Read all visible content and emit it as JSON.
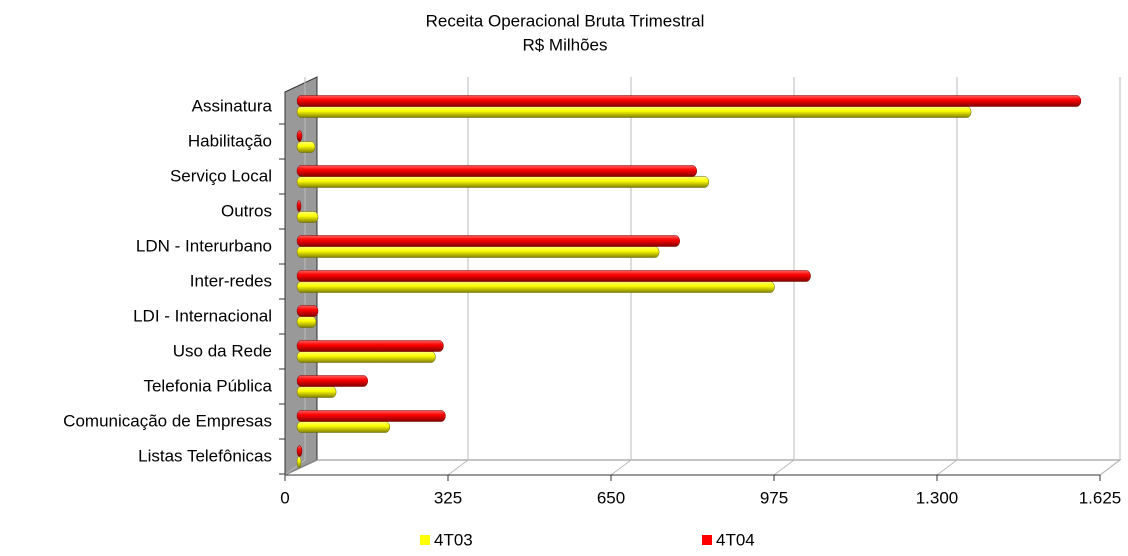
{
  "chart_data": {
    "type": "bar",
    "orientation": "horizontal",
    "title": "Receita Operacional Bruta Trimestral",
    "subtitle": "R$ Milhões",
    "categories": [
      "Assinatura",
      "Habilitação",
      "Serviço Local",
      "Outros",
      "LDN - Interurbano",
      "Inter-redes",
      "LDI - Internacional",
      "Uso da Rede",
      "Telefonia Pública",
      "Comunicação de Empresas",
      "Listas Telefônicas"
    ],
    "series": [
      {
        "name": "4T03",
        "color": "#ffff00",
        "values": [
          1344,
          36,
          821,
          42,
          722,
          952,
          38,
          276,
          78,
          185,
          8
        ]
      },
      {
        "name": "4T04",
        "color": "#ff0000",
        "values": [
          1563,
          10,
          797,
          6,
          763,
          1024,
          42,
          292,
          141,
          296,
          10
        ]
      }
    ],
    "xlim": [
      0,
      1625
    ],
    "xticks": [
      0,
      325,
      650,
      975,
      {
        "value": 1300,
        "label": "1.300"
      },
      {
        "value": 1625,
        "label": "1.625"
      }
    ],
    "grid": true,
    "legend": "bottom"
  }
}
